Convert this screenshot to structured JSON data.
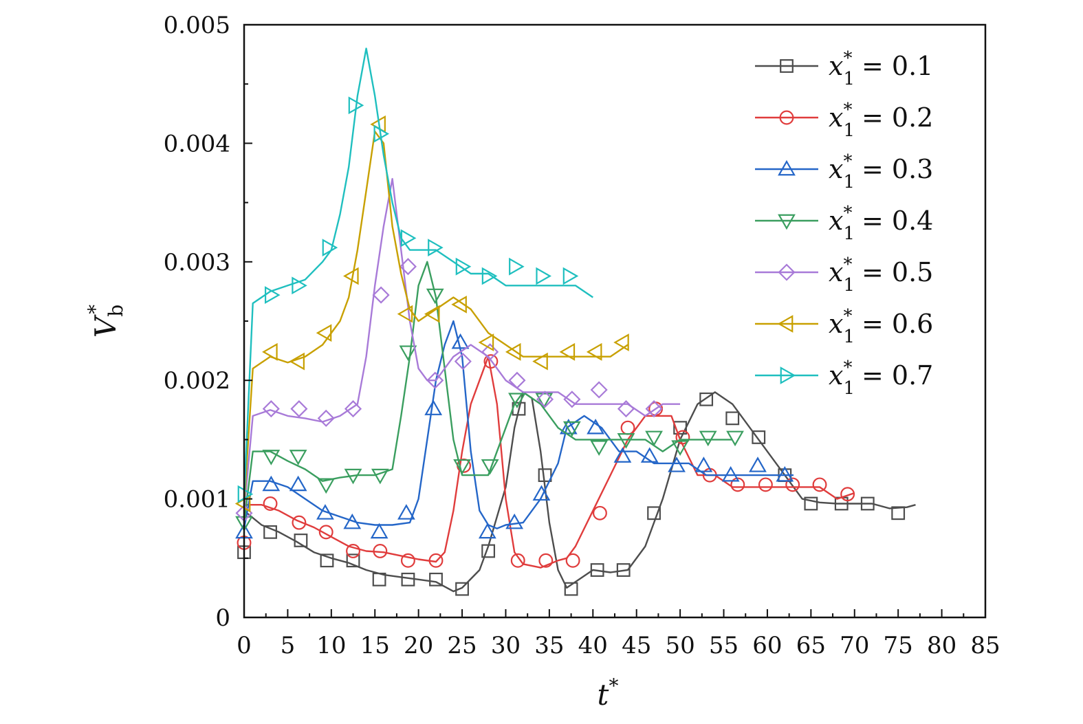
{
  "chart_data": {
    "type": "line",
    "xlabel": "t",
    "xlabel_sup": "*",
    "ylabel": "V",
    "ylabel_sub": "b",
    "ylabel_sup": "*",
    "xlim": [
      0,
      85
    ],
    "ylim": [
      0,
      0.005
    ],
    "xticks": [
      "0",
      "5",
      "10",
      "15",
      "20",
      "25",
      "30",
      "35",
      "40",
      "45",
      "50",
      "55",
      "60",
      "65",
      "70",
      "75",
      "80",
      "85"
    ],
    "yticks": [
      "0",
      "0.001",
      "0.002",
      "0.003",
      "0.004",
      "0.005"
    ],
    "grid": false,
    "legend_position": "top-right",
    "series": [
      {
        "name": "x1* = 0.1",
        "label_var": "x",
        "label_sub": "1",
        "label_sup": "*",
        "label_val": "= 0.1",
        "color": "#4d4d4d",
        "marker": "square",
        "x": [
          0,
          2,
          4,
          6,
          8,
          10,
          12,
          14,
          16,
          18,
          20,
          22,
          24,
          25,
          27,
          28,
          30,
          31,
          32,
          33,
          34,
          35,
          36,
          37,
          38,
          40,
          42,
          44,
          46,
          48,
          50,
          52,
          54,
          56,
          58,
          60,
          62,
          64,
          66,
          68,
          70,
          72,
          74,
          76,
          77
        ],
        "y": [
          0.0009,
          0.00078,
          0.00072,
          0.00064,
          0.00055,
          0.0005,
          0.00046,
          0.0004,
          0.00036,
          0.00034,
          0.00032,
          0.0003,
          0.00022,
          0.00025,
          0.0004,
          0.0006,
          0.0011,
          0.0016,
          0.0019,
          0.00185,
          0.0014,
          0.0008,
          0.0004,
          0.00025,
          0.0003,
          0.0004,
          0.00038,
          0.0004,
          0.0006,
          0.001,
          0.0015,
          0.0018,
          0.0019,
          0.0018,
          0.0016,
          0.0014,
          0.0012,
          0.001,
          0.00097,
          0.00096,
          0.00096,
          0.00096,
          0.00092,
          0.00093,
          0.00095
        ],
        "markers_x": [
          0,
          3,
          6.5,
          9.5,
          12.5,
          15.5,
          18.8,
          22,
          25,
          28,
          31.5,
          34.5,
          37.5,
          40.5,
          43.5,
          47,
          50,
          53,
          56,
          59,
          62,
          65,
          68.5,
          71.5,
          75
        ],
        "markers_y": [
          0.00055,
          0.00072,
          0.00065,
          0.00048,
          0.00048,
          0.00032,
          0.00032,
          0.00032,
          0.00024,
          0.00056,
          0.00176,
          0.0012,
          0.00024,
          0.0004,
          0.0004,
          0.00088,
          0.0016,
          0.00184,
          0.00168,
          0.00152,
          0.0012,
          0.00096,
          0.00096,
          0.00096,
          0.00088
        ]
      },
      {
        "name": "x1* = 0.2",
        "label_var": "x",
        "label_sub": "1",
        "label_sup": "*",
        "label_val": "= 0.2",
        "color": "#e03c3c",
        "marker": "circle",
        "x": [
          0,
          2,
          4,
          6,
          8,
          10,
          12,
          14,
          16,
          18,
          20,
          22,
          23,
          24,
          25,
          26,
          27,
          28,
          29,
          30,
          31,
          32,
          34,
          36,
          37,
          38,
          40,
          42,
          44,
          46,
          48,
          49,
          50,
          52,
          54,
          56,
          58,
          60,
          62,
          64,
          66,
          68,
          70
        ],
        "y": [
          0.00095,
          0.00095,
          0.0009,
          0.00082,
          0.00076,
          0.00068,
          0.0006,
          0.00056,
          0.00055,
          0.00052,
          0.00049,
          0.00047,
          0.00055,
          0.0009,
          0.0014,
          0.0018,
          0.002,
          0.0022,
          0.0018,
          0.001,
          0.00055,
          0.00045,
          0.00042,
          0.00048,
          0.0005,
          0.0006,
          0.0009,
          0.0012,
          0.0015,
          0.0017,
          0.0017,
          0.0017,
          0.0015,
          0.0012,
          0.0012,
          0.0011,
          0.0011,
          0.0011,
          0.0011,
          0.0011,
          0.0011,
          0.001,
          0.00105
        ],
        "markers_x": [
          0,
          3,
          6.3,
          9.4,
          12.5,
          15.6,
          18.8,
          22,
          25.2,
          28.3,
          31.4,
          34.6,
          37.7,
          40.8,
          44,
          47.2,
          50.3,
          53.4,
          56.6,
          59.8,
          62.9,
          66,
          69.2
        ],
        "markers_y": [
          0.00063,
          0.00096,
          0.0008,
          0.00072,
          0.00056,
          0.00056,
          0.00048,
          0.00048,
          0.00128,
          0.00216,
          0.00048,
          0.00048,
          0.00048,
          0.00088,
          0.0016,
          0.00176,
          0.00152,
          0.0012,
          0.00112,
          0.00112,
          0.00112,
          0.00112,
          0.00104
        ]
      },
      {
        "name": "x1* = 0.3",
        "label_var": "x",
        "label_sub": "1",
        "label_sup": "*",
        "label_val": "= 0.3",
        "color": "#2466c8",
        "marker": "triangle-up",
        "x": [
          0,
          1,
          3,
          5,
          7,
          9,
          11,
          13,
          15,
          17,
          19,
          20,
          21,
          22,
          23,
          24,
          25,
          26,
          27,
          28,
          29,
          30,
          32,
          34,
          36,
          37,
          39,
          41,
          43,
          45,
          47,
          49,
          51,
          53,
          55,
          57,
          59,
          61,
          63
        ],
        "y": [
          0.00075,
          0.00115,
          0.00115,
          0.0011,
          0.001,
          0.0009,
          0.00085,
          0.0008,
          0.00078,
          0.00078,
          0.0008,
          0.001,
          0.0015,
          0.002,
          0.0023,
          0.0025,
          0.0022,
          0.0014,
          0.0009,
          0.00078,
          0.00075,
          0.00078,
          0.0008,
          0.001,
          0.0013,
          0.0016,
          0.0017,
          0.0016,
          0.0014,
          0.0014,
          0.0013,
          0.0013,
          0.0013,
          0.0012,
          0.0012,
          0.0012,
          0.0012,
          0.0012,
          0.0012
        ],
        "markers_x": [
          0,
          3.1,
          6.2,
          9.3,
          12.4,
          15.5,
          18.6,
          21.7,
          24.8,
          27.9,
          31,
          34.1,
          37.2,
          40.3,
          43.4,
          46.5,
          49.6,
          52.7,
          55.8,
          58.9,
          62
        ],
        "markers_y": [
          0.00072,
          0.00112,
          0.00112,
          0.00088,
          0.0008,
          0.00072,
          0.00088,
          0.00176,
          0.00232,
          0.00072,
          0.0008,
          0.00104,
          0.0016,
          0.0016,
          0.00136,
          0.00136,
          0.00128,
          0.00128,
          0.0012,
          0.00128,
          0.0012
        ]
      },
      {
        "name": "x1* = 0.4",
        "label_var": "x",
        "label_sub": "1",
        "label_sup": "*",
        "label_val": "= 0.4",
        "color": "#3a9e5f",
        "marker": "triangle-down",
        "x": [
          0,
          1,
          3,
          5,
          7,
          9,
          11,
          13,
          15,
          17,
          18,
          19,
          20,
          21,
          22,
          23,
          24,
          25,
          26,
          27,
          28,
          29,
          30,
          31,
          32,
          34,
          36,
          38,
          40,
          42,
          44,
          46,
          48,
          50,
          52,
          54,
          56
        ],
        "y": [
          0.0008,
          0.0014,
          0.0014,
          0.00132,
          0.00125,
          0.00115,
          0.00118,
          0.0012,
          0.0012,
          0.00125,
          0.0017,
          0.0022,
          0.0028,
          0.003,
          0.0027,
          0.0021,
          0.0015,
          0.0012,
          0.0012,
          0.0012,
          0.0012,
          0.0014,
          0.0016,
          0.0018,
          0.0019,
          0.0018,
          0.0016,
          0.0015,
          0.0015,
          0.0015,
          0.0015,
          0.0015,
          0.0014,
          0.0015,
          0.0015,
          0.0015,
          0.0015
        ],
        "markers_x": [
          0,
          3.1,
          6.2,
          9.4,
          12.5,
          15.6,
          18.8,
          21.9,
          25,
          28.2,
          31.3,
          34.4,
          37.6,
          40.7,
          43.8,
          47,
          50,
          53.2,
          56.3
        ],
        "markers_y": [
          0.0008,
          0.00136,
          0.00136,
          0.00112,
          0.0012,
          0.0012,
          0.00224,
          0.00272,
          0.00128,
          0.00128,
          0.00184,
          0.00184,
          0.0016,
          0.00144,
          0.0015,
          0.00152,
          0.00144,
          0.00152,
          0.00152
        ]
      },
      {
        "name": "x1* = 0.5",
        "label_var": "x",
        "label_sub": "1",
        "label_sup": "*",
        "label_val": "= 0.5",
        "color": "#a87ad8",
        "marker": "diamond",
        "x": [
          0,
          1,
          3,
          5,
          7,
          9,
          11,
          13,
          14,
          15,
          16,
          17,
          18,
          19,
          20,
          21,
          22,
          24,
          26,
          28,
          30,
          32,
          34,
          36,
          38,
          40,
          42,
          44,
          46,
          48,
          50
        ],
        "y": [
          0.0009,
          0.0017,
          0.00175,
          0.0017,
          0.00168,
          0.00165,
          0.0017,
          0.0018,
          0.0022,
          0.0028,
          0.0033,
          0.0037,
          0.0031,
          0.0025,
          0.0021,
          0.002,
          0.002,
          0.0022,
          0.0023,
          0.0022,
          0.002,
          0.0019,
          0.0019,
          0.0019,
          0.0018,
          0.0018,
          0.0018,
          0.0018,
          0.0017,
          0.0018,
          0.0018
        ],
        "markers_x": [
          0,
          3.1,
          6.3,
          9.4,
          12.5,
          15.7,
          18.8,
          21.9,
          25.1,
          28.2,
          31.3,
          34.5,
          37.6,
          40.7,
          43.8,
          47
        ],
        "markers_y": [
          0.00088,
          0.00176,
          0.00176,
          0.00168,
          0.00176,
          0.00272,
          0.00296,
          0.002,
          0.00216,
          0.00224,
          0.002,
          0.00184,
          0.00184,
          0.00192,
          0.00176,
          0.00176
        ]
      },
      {
        "name": "x1* = 0.6",
        "label_var": "x",
        "label_sub": "1",
        "label_sup": "*",
        "label_val": "= 0.6",
        "color": "#c8a000",
        "marker": "triangle-left",
        "x": [
          0,
          1,
          3,
          5,
          7,
          9,
          11,
          12,
          13,
          14,
          15,
          16,
          17,
          18,
          19,
          20,
          22,
          24,
          26,
          28,
          30,
          32,
          34,
          36,
          38,
          40,
          42,
          44
        ],
        "y": [
          0.00095,
          0.0021,
          0.0022,
          0.00215,
          0.0022,
          0.0023,
          0.0025,
          0.0027,
          0.0031,
          0.0036,
          0.0041,
          0.004,
          0.0033,
          0.0029,
          0.0026,
          0.0025,
          0.0026,
          0.0027,
          0.0026,
          0.0024,
          0.0023,
          0.0022,
          0.0022,
          0.0022,
          0.0022,
          0.0022,
          0.0022,
          0.0023
        ],
        "markers_x": [
          0,
          3.1,
          6.2,
          9.3,
          12.4,
          15.5,
          18.6,
          21.7,
          24.8,
          27.9,
          31,
          34.1,
          37.2,
          40.3,
          43.4
        ],
        "markers_y": [
          0.00096,
          0.00224,
          0.00216,
          0.0024,
          0.00288,
          0.00416,
          0.00256,
          0.00256,
          0.00264,
          0.00232,
          0.00224,
          0.00216,
          0.00224,
          0.00224,
          0.00232
        ]
      },
      {
        "name": "x1* = 0.7",
        "label_var": "x",
        "label_sub": "1",
        "label_sup": "*",
        "label_val": "= 0.7",
        "color": "#1fbfbf",
        "marker": "triangle-right",
        "x": [
          0,
          1,
          3,
          5,
          7,
          9,
          10,
          11,
          12,
          13,
          14,
          15,
          16,
          17,
          18,
          19,
          20,
          22,
          24,
          26,
          28,
          30,
          32,
          34,
          36,
          38,
          40
        ],
        "y": [
          0.001,
          0.00265,
          0.00275,
          0.0028,
          0.00285,
          0.003,
          0.0031,
          0.0034,
          0.0038,
          0.0044,
          0.0048,
          0.0044,
          0.0039,
          0.0035,
          0.0032,
          0.0031,
          0.0031,
          0.0031,
          0.003,
          0.0029,
          0.0029,
          0.0028,
          0.0028,
          0.0028,
          0.0028,
          0.0028,
          0.0027
        ],
        "markers_x": [
          0,
          3.1,
          6.2,
          9.7,
          12.7,
          15.6,
          18.7,
          21.8,
          25,
          28,
          31.1,
          34.2,
          37.3
        ],
        "markers_y": [
          0.00104,
          0.00272,
          0.0028,
          0.00312,
          0.00432,
          0.00408,
          0.0032,
          0.00312,
          0.00296,
          0.00288,
          0.00296,
          0.00288,
          0.00288
        ]
      }
    ]
  }
}
